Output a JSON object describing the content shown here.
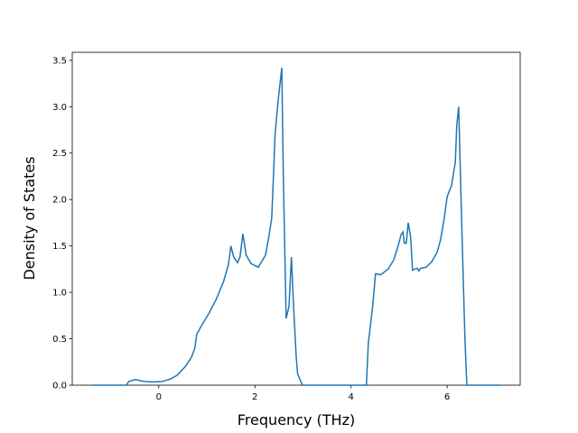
{
  "chart_data": {
    "type": "line",
    "xlabel": "Frequency (THz)",
    "ylabel": "Density of States",
    "x": [
      -1.39,
      -0.68,
      -0.62,
      -0.49,
      -0.3,
      -0.11,
      0.08,
      0.26,
      0.39,
      0.55,
      0.68,
      0.75,
      0.79,
      0.9,
      1.05,
      1.2,
      1.35,
      1.45,
      1.5,
      1.56,
      1.64,
      1.69,
      1.75,
      1.82,
      1.92,
      2.07,
      2.14,
      2.22,
      2.29,
      2.35,
      2.39,
      2.42,
      2.48,
      2.56,
      2.59,
      2.65,
      2.71,
      2.76,
      2.8,
      2.86,
      2.89,
      2.99,
      4.21,
      4.32,
      4.36,
      4.45,
      4.51,
      4.62,
      4.77,
      4.89,
      4.98,
      5.04,
      5.08,
      5.11,
      5.15,
      5.19,
      5.24,
      5.28,
      5.38,
      5.41,
      5.45,
      5.56,
      5.68,
      5.79,
      5.86,
      5.94,
      6.0,
      6.09,
      6.17,
      6.2,
      6.24,
      6.3,
      6.37,
      6.41,
      7.11
    ],
    "series": [
      {
        "name": "DOS",
        "color": "#1f77b4",
        "values": [
          0,
          0,
          0.04,
          0.06,
          0.04,
          0.035,
          0.04,
          0.07,
          0.11,
          0.2,
          0.3,
          0.4,
          0.55,
          0.65,
          0.78,
          0.93,
          1.12,
          1.3,
          1.5,
          1.38,
          1.32,
          1.38,
          1.63,
          1.4,
          1.31,
          1.27,
          1.33,
          1.4,
          1.6,
          1.8,
          2.3,
          2.7,
          3.05,
          3.42,
          2.3,
          0.72,
          0.85,
          1.38,
          0.9,
          0.3,
          0.12,
          0,
          0,
          0,
          0.45,
          0.85,
          1.2,
          1.19,
          1.25,
          1.35,
          1.5,
          1.62,
          1.65,
          1.53,
          1.53,
          1.75,
          1.6,
          1.24,
          1.26,
          1.23,
          1.26,
          1.27,
          1.33,
          1.43,
          1.56,
          1.8,
          2.03,
          2.15,
          2.4,
          2.8,
          3.0,
          1.8,
          0.5,
          0,
          0
        ]
      }
    ],
    "xlim": [
      -1.8,
      7.52
    ],
    "xticks": [
      0,
      2,
      4,
      6
    ],
    "ylim": [
      0,
      3.586
    ],
    "yticks": [
      {
        "value": 0,
        "label": "0.0"
      },
      {
        "value": 0.5,
        "label": "0.5"
      },
      {
        "value": 1,
        "label": "1.0"
      },
      {
        "value": 1.5,
        "label": "1.5"
      },
      {
        "value": 2,
        "label": "2.0"
      },
      {
        "value": 2.5,
        "label": "2.5"
      },
      {
        "value": 3,
        "label": "3.0"
      },
      {
        "value": 3.5,
        "label": "3.5"
      }
    ],
    "grid": false
  }
}
